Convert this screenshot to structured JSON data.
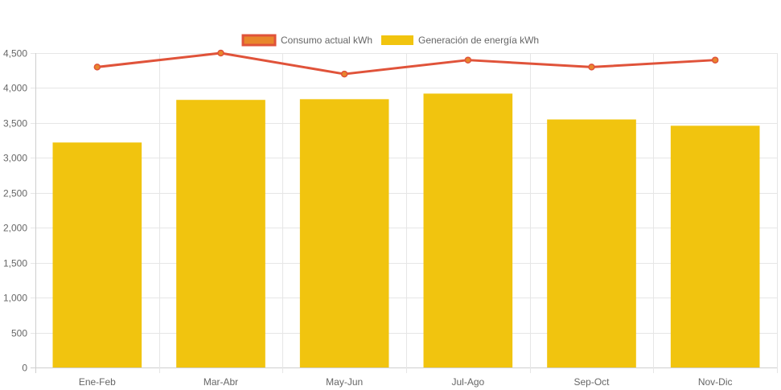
{
  "chart_data": {
    "type": "bar",
    "categories": [
      "Ene-Feb",
      "Mar-Abr",
      "May-Jun",
      "Jul-Ago",
      "Sep-Oct",
      "Nov-Dic"
    ],
    "series": [
      {
        "name": "Consumo actual kWh",
        "type": "line",
        "values": [
          4300,
          4500,
          4200,
          4400,
          4300,
          4400
        ],
        "color": "#e0533a",
        "fill": "#e8862c"
      },
      {
        "name": "Generación de energía kWh",
        "type": "bar",
        "values": [
          3220,
          3830,
          3840,
          3920,
          3550,
          3460
        ],
        "color": "#f1c40f"
      }
    ],
    "ylim": [
      0,
      4500
    ],
    "yticks": [
      0,
      500,
      1000,
      1500,
      2000,
      2500,
      3000,
      3500,
      4000,
      4500
    ],
    "ytick_labels": [
      "0",
      "500",
      "1,000",
      "1,500",
      "2,000",
      "2,500",
      "3,000",
      "3,500",
      "4,000",
      "4,500"
    ],
    "grid": true,
    "legend_position": "top-center",
    "title": "",
    "xlabel": "",
    "ylabel": ""
  }
}
